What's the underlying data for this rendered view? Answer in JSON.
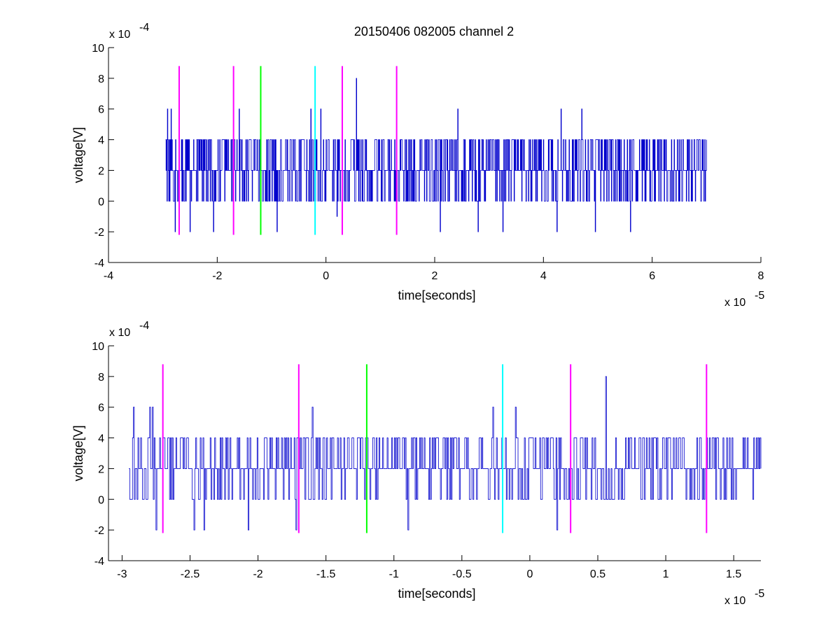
{
  "figure": {
    "title": "20150406 082005 channel 2"
  },
  "chart_data": [
    {
      "type": "line",
      "title": "20150406 082005 channel 2",
      "xlabel": "time[seconds]",
      "ylabel": "voltage[V]",
      "x_multiplier_label": "x 10",
      "x_multiplier_exp": "-5",
      "y_multiplier_label": "x 10",
      "y_multiplier_exp": "-4",
      "xlim": [
        -4e-05,
        8e-05
      ],
      "ylim": [
        -0.0004,
        0.001
      ],
      "xticks": [
        -4,
        -2,
        0,
        2,
        4,
        6,
        8
      ],
      "xtick_labels": [
        "-4",
        "-2",
        "0",
        "2",
        "4",
        "6",
        "8"
      ],
      "yticks": [
        -4,
        -2,
        0,
        2,
        4,
        6,
        8,
        10
      ],
      "ytick_labels": [
        "-4",
        "-2",
        "0",
        "2",
        "4",
        "6",
        "8",
        "10"
      ],
      "series": [
        {
          "color": "#0000cc",
          "x_start": -2.95e-05,
          "x_end": 7e-05,
          "levels": [
            -0.0002,
            0,
            0.0002,
            0.0004,
            0.0006,
            0.0008
          ],
          "spikes": [
            {
              "x": -2.92e-05,
              "y": 0.0006
            },
            {
              "x": -2.85e-05,
              "y": 0.0006
            },
            {
              "x": -2.78e-05,
              "y": -0.0002
            },
            {
              "x": -2.5e-05,
              "y": -0.0002
            },
            {
              "x": -2.07e-05,
              "y": -0.0002
            },
            {
              "x": -1.6e-05,
              "y": 0.0006
            },
            {
              "x": -9e-06,
              "y": -0.0002
            },
            {
              "x": -2.8e-06,
              "y": 0.0006
            },
            {
              "x": -1e-06,
              "y": 0.0006
            },
            {
              "x": 2e-06,
              "y": -0.0001
            },
            {
              "x": 5.6e-06,
              "y": 0.0008
            },
            {
              "x": 2.1e-05,
              "y": -0.0002
            },
            {
              "x": 2.42e-05,
              "y": 0.0006
            },
            {
              "x": 2.8e-05,
              "y": -0.0002
            },
            {
              "x": 3.25e-05,
              "y": -0.0002
            },
            {
              "x": 4.25e-05,
              "y": -0.0002
            },
            {
              "x": 4.32e-05,
              "y": 0.0006
            },
            {
              "x": 4.7e-05,
              "y": 0.0006
            },
            {
              "x": 4.95e-05,
              "y": -0.0002
            },
            {
              "x": 5.6e-05,
              "y": -0.0002
            }
          ]
        }
      ],
      "markers": [
        {
          "x": -2.7e-05,
          "color": "#ff00ff",
          "y_from": -0.00022,
          "y_to": 0.00088
        },
        {
          "x": -1.7e-05,
          "color": "#ff00ff",
          "y_from": -0.00022,
          "y_to": 0.00088
        },
        {
          "x": -1.2e-05,
          "color": "#00ff00",
          "y_from": -0.00022,
          "y_to": 0.00088
        },
        {
          "x": -2e-06,
          "color": "#00ffff",
          "y_from": -0.00022,
          "y_to": 0.00088
        },
        {
          "x": 3e-06,
          "color": "#ff00ff",
          "y_from": -0.00022,
          "y_to": 0.00088
        },
        {
          "x": 1.3e-05,
          "color": "#ff00ff",
          "y_from": -0.00022,
          "y_to": 0.00088
        }
      ],
      "grid": false
    },
    {
      "type": "line",
      "title": "",
      "xlabel": "time[seconds]",
      "ylabel": "voltage[V]",
      "x_multiplier_label": "x 10",
      "x_multiplier_exp": "-5",
      "y_multiplier_label": "x 10",
      "y_multiplier_exp": "-4",
      "xlim": [
        -3.1e-05,
        1.7e-05
      ],
      "ylim": [
        -0.0004,
        0.001
      ],
      "xticks": [
        -3,
        -2.5,
        -2,
        -1.5,
        -1,
        -0.5,
        0,
        0.5,
        1,
        1.5
      ],
      "xtick_labels": [
        "-3",
        "-2.5",
        "-2",
        "-1.5",
        "-1",
        "-0.5",
        "0",
        "0.5",
        "1",
        "1.5"
      ],
      "yticks": [
        -4,
        -2,
        0,
        2,
        4,
        6,
        8,
        10
      ],
      "ytick_labels": [
        "-4",
        "-2",
        "0",
        "2",
        "4",
        "6",
        "8",
        "10"
      ],
      "series": [
        {
          "color": "#0000cc",
          "x_start": -2.95e-05,
          "x_end": 1.7e-05,
          "levels": [
            -0.0002,
            0,
            0.0002,
            0.0004,
            0.0006,
            0.0008
          ],
          "spikes": [
            {
              "x": -2.92e-05,
              "y": 0.0006
            },
            {
              "x": -2.8e-05,
              "y": 0.0006
            },
            {
              "x": -2.78e-05,
              "y": 0.0006
            },
            {
              "x": -2.75e-05,
              "y": -0.0002
            },
            {
              "x": -2.47e-05,
              "y": -0.0002
            },
            {
              "x": -2.4e-05,
              "y": -0.0002
            },
            {
              "x": -2.07e-05,
              "y": -0.0002
            },
            {
              "x": -1.6e-05,
              "y": 0.0006
            },
            {
              "x": -1.72e-05,
              "y": -0.0002
            },
            {
              "x": -9e-06,
              "y": -0.0002
            },
            {
              "x": -2.7e-06,
              "y": 0.0006
            },
            {
              "x": -1.1e-06,
              "y": 0.0006
            },
            {
              "x": 2e-06,
              "y": -0.0002
            },
            {
              "x": 5.6e-06,
              "y": 0.0008
            }
          ]
        }
      ],
      "markers": [
        {
          "x": -2.7e-05,
          "color": "#ff00ff",
          "y_from": -0.00022,
          "y_to": 0.00088
        },
        {
          "x": -1.7e-05,
          "color": "#ff00ff",
          "y_from": -0.00022,
          "y_to": 0.00088
        },
        {
          "x": -1.2e-05,
          "color": "#00ff00",
          "y_from": -0.00022,
          "y_to": 0.00088
        },
        {
          "x": -2e-06,
          "color": "#00ffff",
          "y_from": -0.00022,
          "y_to": 0.00088
        },
        {
          "x": 3e-06,
          "color": "#ff00ff",
          "y_from": -0.00022,
          "y_to": 0.00088
        },
        {
          "x": 1.3e-05,
          "color": "#ff00ff",
          "y_from": -0.00022,
          "y_to": 0.00088
        }
      ],
      "grid": false
    }
  ]
}
